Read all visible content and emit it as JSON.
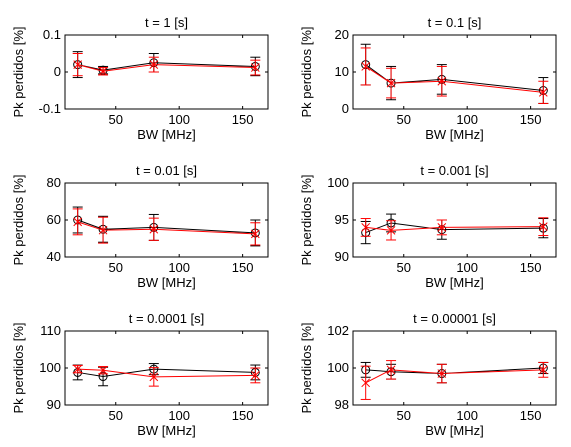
{
  "chart_data": [
    {
      "type": "line",
      "title": "t = 1 [s]",
      "xlabel": "BW [MHz]",
      "ylabel": "Pk perdidos [%]",
      "xlim": [
        10,
        170
      ],
      "ylim": [
        -0.1,
        0.1
      ],
      "xticks": [
        "50",
        "100",
        "150"
      ],
      "yticks": [
        "-0.1",
        "0",
        "0.1"
      ],
      "x": [
        20,
        40,
        80,
        160
      ],
      "series": [
        {
          "color": "#000000",
          "marker": "circle",
          "values": [
            0.02,
            0.005,
            0.025,
            0.015
          ],
          "err": [
            0.035,
            0.01,
            0.025,
            0.025
          ]
        },
        {
          "color": "#ff0000",
          "marker": "x",
          "values": [
            0.02,
            0.002,
            0.02,
            0.012
          ],
          "err": [
            0.03,
            0.01,
            0.02,
            0.02
          ]
        }
      ]
    },
    {
      "type": "line",
      "title": "t = 0.1 [s]",
      "xlabel": "BW [MHz]",
      "ylabel": "Pk perdidos [%]",
      "xlim": [
        10,
        170
      ],
      "ylim": [
        0,
        20
      ],
      "xticks": [
        "50",
        "100",
        "150"
      ],
      "yticks": [
        "0",
        "10",
        "20"
      ],
      "x": [
        20,
        40,
        80,
        160
      ],
      "series": [
        {
          "color": "#000000",
          "marker": "circle",
          "values": [
            12,
            7,
            8,
            5
          ],
          "err": [
            5.5,
            4.5,
            4,
            3.5
          ]
        },
        {
          "color": "#ff0000",
          "marker": "x",
          "values": [
            11.5,
            7,
            7.5,
            4.5
          ],
          "err": [
            5,
            4,
            4,
            3
          ]
        }
      ]
    },
    {
      "type": "line",
      "title": "t = 0.01 [s]",
      "xlabel": "BW [MHz]",
      "ylabel": "Pk perdidos [%]",
      "xlim": [
        10,
        170
      ],
      "ylim": [
        40,
        80
      ],
      "xticks": [
        "50",
        "100",
        "150"
      ],
      "yticks": [
        "40",
        "60",
        "80"
      ],
      "x": [
        20,
        40,
        80,
        160
      ],
      "series": [
        {
          "color": "#000000",
          "marker": "circle",
          "values": [
            60,
            55,
            56,
            53
          ],
          "err": [
            7,
            7,
            7,
            7
          ]
        },
        {
          "color": "#ff0000",
          "marker": "x",
          "values": [
            59,
            54.5,
            55,
            52.5
          ],
          "err": [
            7,
            7,
            6,
            6
          ]
        }
      ]
    },
    {
      "type": "line",
      "title": "t = 0.001 [s]",
      "xlabel": "BW [MHz]",
      "ylabel": "Pk perdidos [%]",
      "xlim": [
        10,
        170
      ],
      "ylim": [
        90,
        100
      ],
      "xticks": [
        "50",
        "100",
        "150"
      ],
      "yticks": [
        "90",
        "95",
        "100"
      ],
      "x": [
        20,
        40,
        80,
        160
      ],
      "series": [
        {
          "color": "#000000",
          "marker": "circle",
          "values": [
            93.3,
            94.6,
            93.7,
            93.9
          ],
          "err": [
            1.5,
            1.2,
            1.3,
            1.3
          ]
        },
        {
          "color": "#ff0000",
          "marker": "x",
          "values": [
            94.0,
            93.6,
            94.0,
            94.1
          ],
          "err": [
            1.2,
            1.3,
            1.0,
            1.2
          ]
        }
      ]
    },
    {
      "type": "line",
      "title": "t = 0.0001 [s]",
      "xlabel": "BW [MHz]",
      "ylabel": "Pk perdidos [%]",
      "xlim": [
        10,
        170
      ],
      "ylim": [
        90,
        110
      ],
      "xticks": [
        "50",
        "100",
        "150"
      ],
      "yticks": [
        "90",
        "100",
        "110"
      ],
      "x": [
        20,
        40,
        80,
        160
      ],
      "series": [
        {
          "color": "#000000",
          "marker": "circle",
          "values": [
            98.8,
            97.7,
            99.7,
            98.8
          ],
          "err": [
            2,
            2.5,
            1.5,
            2
          ]
        },
        {
          "color": "#ff0000",
          "marker": "x",
          "values": [
            99.7,
            99.4,
            97.6,
            98.0
          ],
          "err": [
            1,
            1,
            2.5,
            2
          ]
        }
      ]
    },
    {
      "type": "line",
      "title": "t = 0.00001 [s]",
      "xlabel": "BW [MHz]",
      "ylabel": "Pk perdidos [%]",
      "xlim": [
        10,
        170
      ],
      "ylim": [
        98,
        102
      ],
      "xticks": [
        "50",
        "100",
        "150"
      ],
      "yticks": [
        "98",
        "100",
        "102"
      ],
      "x": [
        20,
        40,
        80,
        160
      ],
      "series": [
        {
          "color": "#000000",
          "marker": "circle",
          "values": [
            99.9,
            99.8,
            99.7,
            100.0
          ],
          "err": [
            0.4,
            0.4,
            0.5,
            0.3
          ]
        },
        {
          "color": "#ff0000",
          "marker": "x",
          "values": [
            99.2,
            99.9,
            99.7,
            99.9
          ],
          "err": [
            0.9,
            0.5,
            0.5,
            0.4
          ]
        }
      ]
    }
  ]
}
